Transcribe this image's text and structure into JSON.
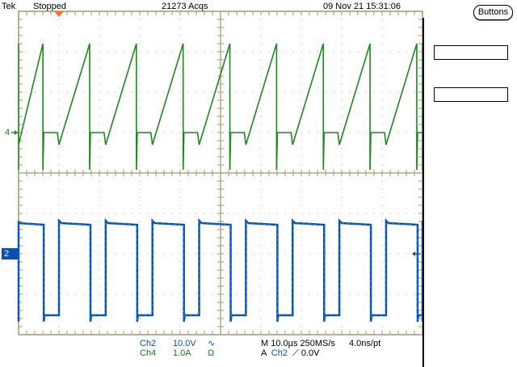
{
  "header": {
    "brand": "Tek",
    "status": "Stopped",
    "acquisitions": "21273 Acqs",
    "datetime": "09 Nov 21 15:31:06",
    "buttons_label": "Buttons"
  },
  "side_boxes": [
    "",
    ""
  ],
  "markers": {
    "ch4_ground": "4",
    "ch2_ground": "2"
  },
  "readout": {
    "ch2": {
      "label": "Ch2",
      "scale": "10.0V",
      "coupling_icon": "∿"
    },
    "ch4": {
      "label": "Ch4",
      "scale": "1.0A",
      "coupling_icon": "Ω"
    },
    "timebase": "M 10.0µs 250MS/s",
    "resolution": "4.0ns/pt",
    "trigger_prefix": "A",
    "trigger_source": "Ch2",
    "trigger_slope_icon": "⟋",
    "trigger_level": "0.0V"
  },
  "colors": {
    "ch2": "#0a4fb5",
    "ch2_highlight": "#19c0d8",
    "ch4": "#1b8a1b",
    "ch4_bright": "#22cc22",
    "graticule": "#a09870",
    "trigger_marker": "#ff7020"
  },
  "chart_data": {
    "type": "line",
    "x_unit": "µs",
    "xlim": [
      -10,
      90
    ],
    "time_per_div_us": 10,
    "trigger_time_us": 0,
    "series": [
      {
        "name": "Ch2",
        "unit": "V",
        "volts_per_div": 10,
        "waveform": "square",
        "period_us": 11.57,
        "high_duration_us": 7.8,
        "high_level": 7.6,
        "low_level": -15.2,
        "first_rising_edge_us": 0
      },
      {
        "name": "Ch4",
        "unit": "A",
        "amps_per_div": 1.0,
        "waveform": "sawtooth",
        "period_us": 11.57,
        "ramp_duration_us": 7.6,
        "ramp_start": -0.3,
        "ramp_peak": 2.2,
        "flat_level": 0.0,
        "first_ramp_start_us": 0
      }
    ]
  }
}
